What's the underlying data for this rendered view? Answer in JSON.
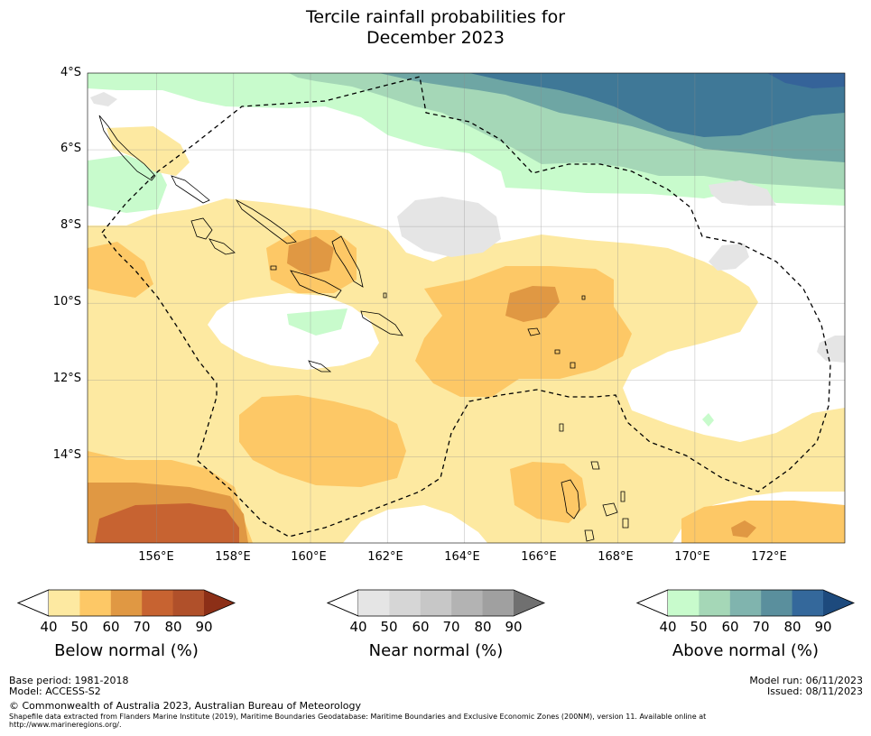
{
  "title": {
    "line1": "Tercile rainfall probabilities for",
    "line2": "December 2023"
  },
  "map": {
    "lat_labels": [
      "4°S",
      "6°S",
      "8°S",
      "10°S",
      "12°S",
      "14°S"
    ],
    "lon_labels": [
      "156°E",
      "158°E",
      "160°E",
      "162°E",
      "164°E",
      "166°E",
      "168°E",
      "170°E",
      "172°E"
    ],
    "lon_range": [
      154.2,
      173.9
    ],
    "lat_range": [
      -16.25,
      -4.0
    ]
  },
  "colorbars": [
    {
      "name": "below",
      "label": "Below normal (%)",
      "ticks": [
        "40",
        "50",
        "60",
        "70",
        "80",
        "90"
      ],
      "colors": [
        "#fde9a1",
        "#fdc866",
        "#e09843",
        "#c76331",
        "#b0502a",
        "#973a1e"
      ],
      "end": "#8c2f17"
    },
    {
      "name": "near",
      "label": "Near normal (%)",
      "ticks": [
        "40",
        "50",
        "60",
        "70",
        "80",
        "90"
      ],
      "colors": [
        "#e5e5e5",
        "#d6d6d6",
        "#c7c7c7",
        "#b3b3b3",
        "#a0a0a0",
        "#808080"
      ],
      "end": "#707070"
    },
    {
      "name": "above",
      "label": "Above normal (%)",
      "ticks": [
        "40",
        "50",
        "60",
        "70",
        "80",
        "90"
      ],
      "colors": [
        "#c8fbcc",
        "#a5d7b7",
        "#80b4ae",
        "#5a8f9d",
        "#34689b",
        "#1e4f86"
      ],
      "end": "#1d4a7d"
    }
  ],
  "footer": {
    "base_period": "Base period: 1981-2018",
    "model": "Model: ACCESS-S2",
    "copyright": "© Commonwealth of Australia 2023, Australian Bureau of Meteorology",
    "shapefile_line1": "Shapefile data extracted from Flanders Marine Institute (2019), Maritime Boundaries Geodatabase: Maritime Boundaries and Exclusive Economic Zones (200NM), version 11. Available online at",
    "shapefile_line2": "http://www.marineregions.org/.",
    "model_run": "Model run: 06/11/2023",
    "issued": "Issued: 08/11/2023"
  },
  "colors": {
    "below50": "#fde9a1",
    "below60": "#fdc866",
    "below70": "#e09843",
    "below80": "#c76331",
    "above40": "#c8fbcc",
    "above50": "#a5d7b7",
    "above60": "#6ea6a4",
    "above70": "#3f7897",
    "above80": "#356399",
    "near40": "#e5e5e5"
  }
}
